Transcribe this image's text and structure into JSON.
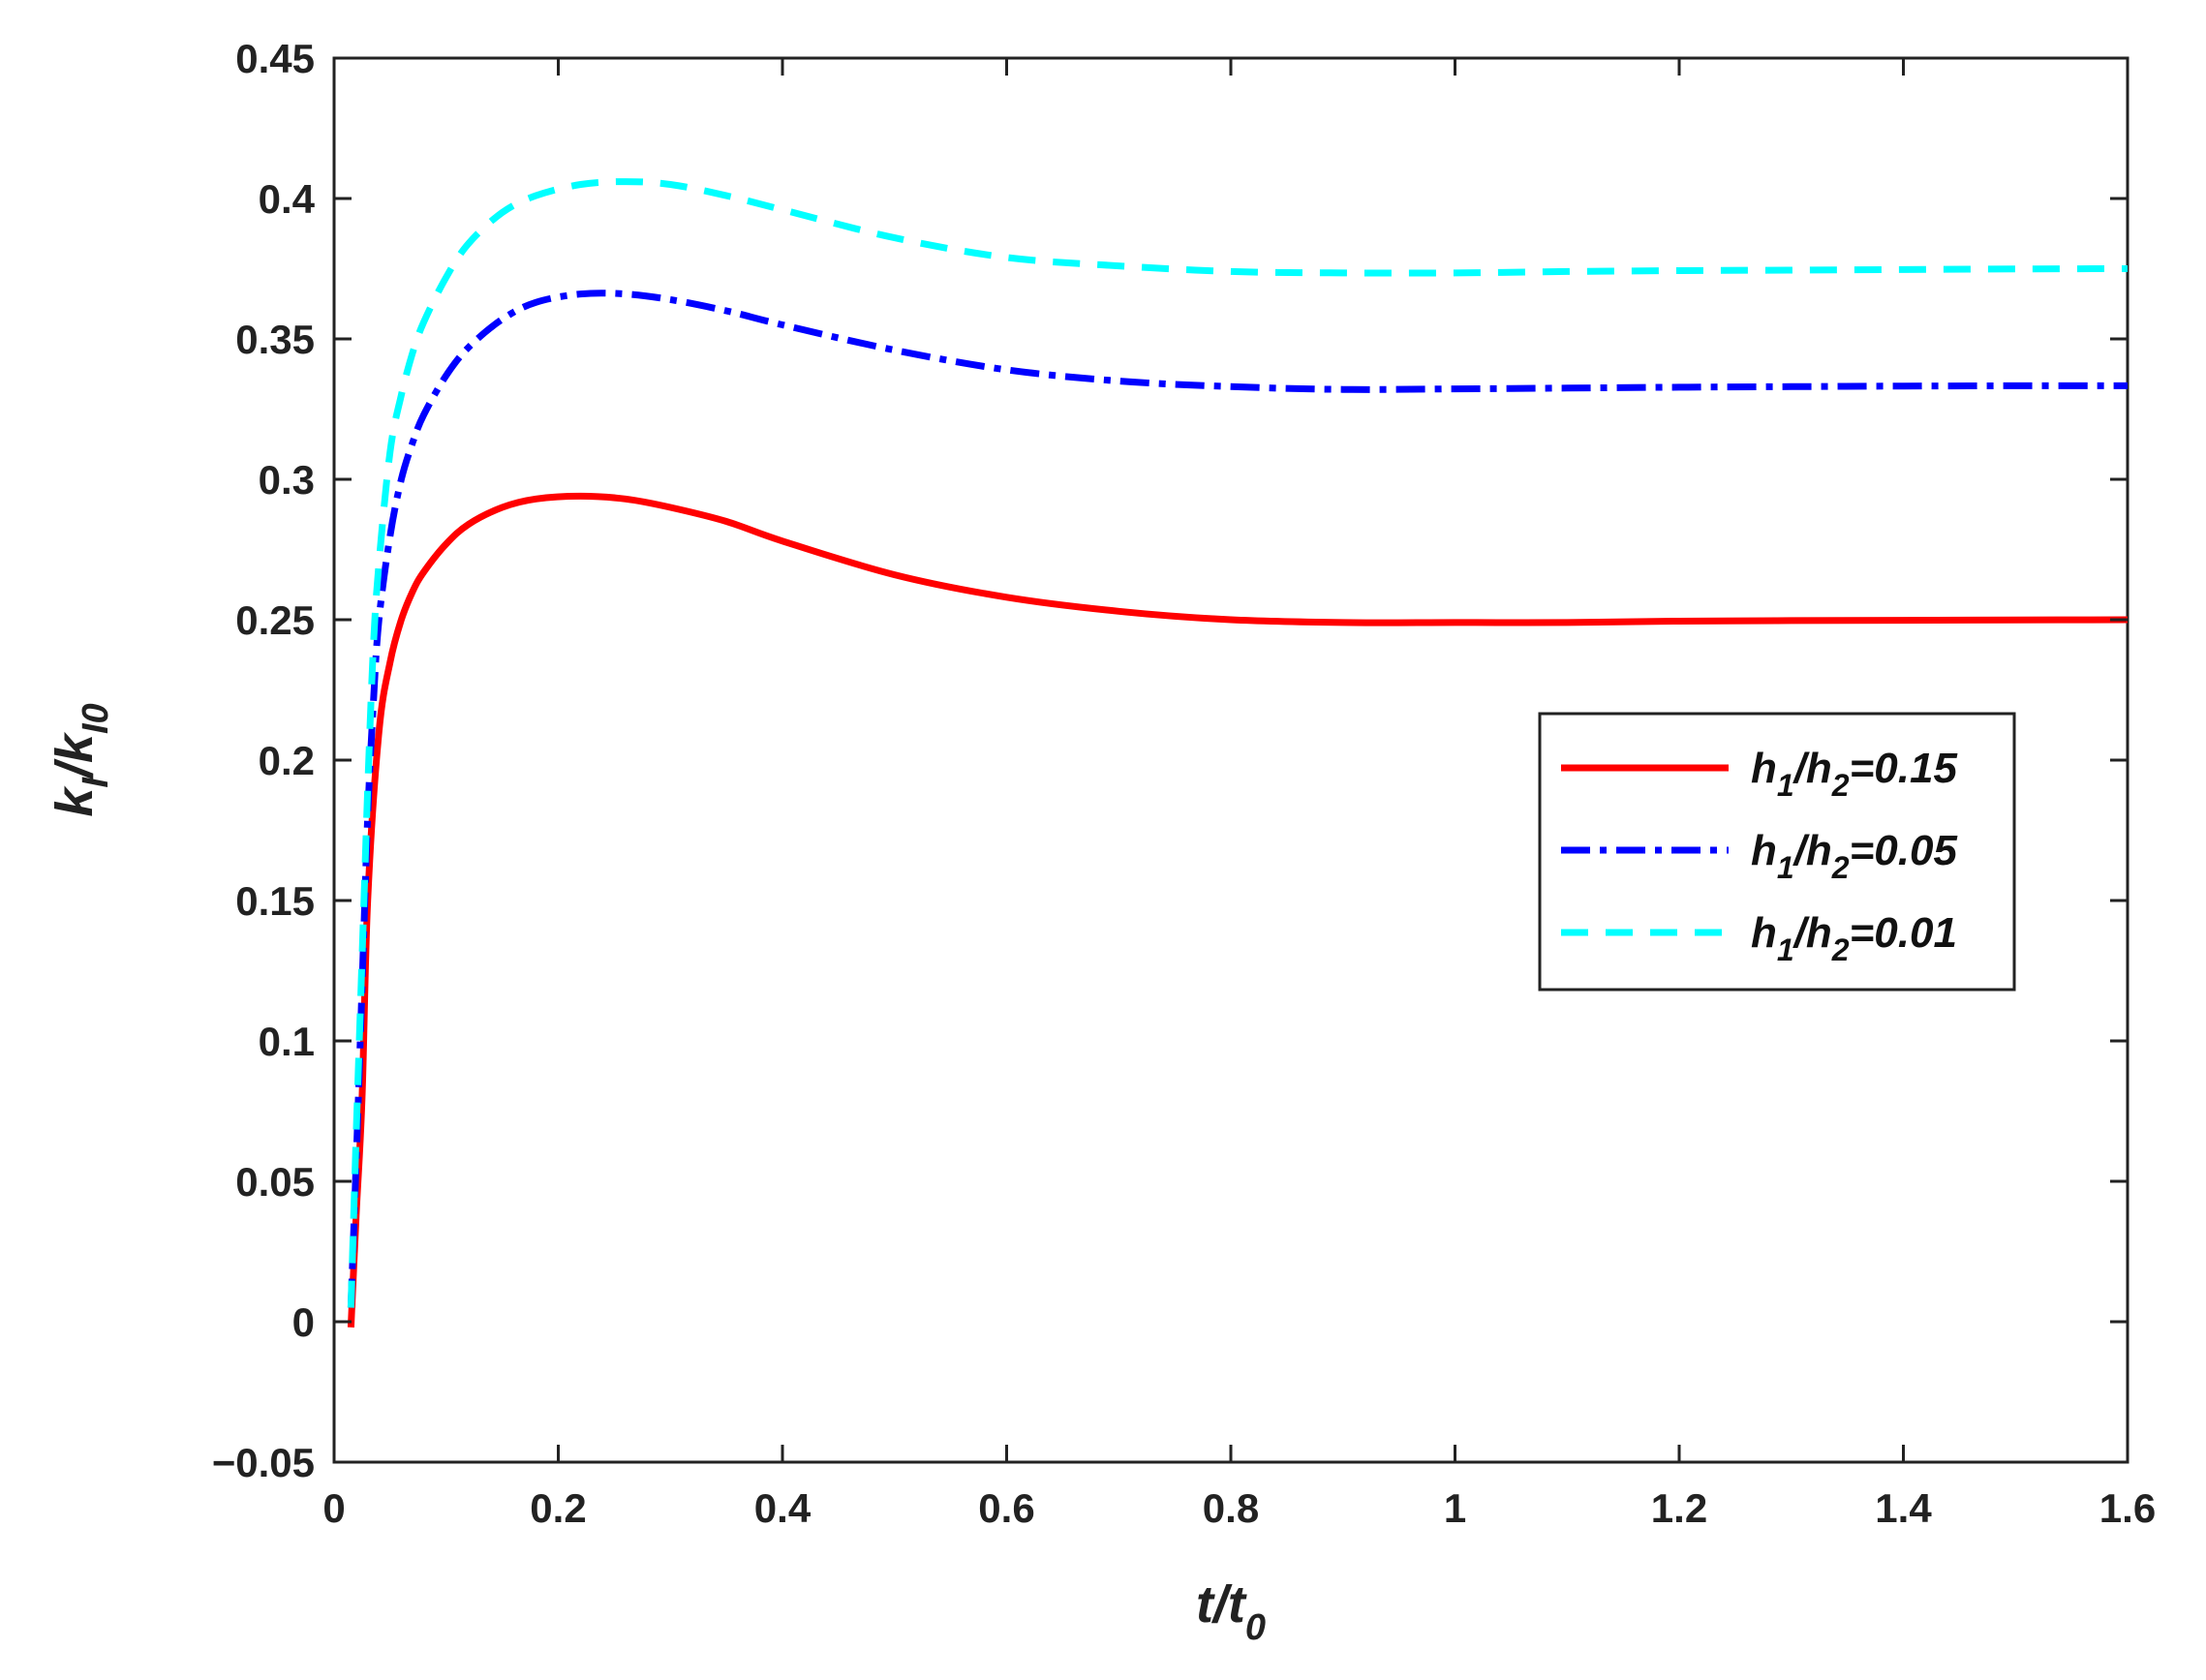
{
  "chart_data": {
    "type": "line",
    "xlabel": {
      "main": "t/t",
      "sub": "0"
    },
    "ylabel": {
      "main": "k",
      "sub1": "I",
      "mid": "/k",
      "sub2": "I0"
    },
    "xlim": [
      0,
      1.6
    ],
    "ylim": [
      -0.05,
      0.45
    ],
    "xticks": [
      0,
      0.2,
      0.4,
      0.6,
      0.8,
      1,
      1.2,
      1.4,
      1.6
    ],
    "xtick_labels": [
      "0",
      "0.2",
      "0.4",
      "0.6",
      "0.8",
      "1",
      "1.2",
      "1.4",
      "1.6"
    ],
    "yticks": [
      -0.05,
      0,
      0.05,
      0.1,
      0.15,
      0.2,
      0.25,
      0.3,
      0.35,
      0.4,
      0.45
    ],
    "ytick_labels": [
      "−0.05",
      "0",
      "0.05",
      "0.1",
      "0.15",
      "0.2",
      "0.25",
      "0.3",
      "0.35",
      "0.4",
      "0.45"
    ],
    "grid": false,
    "legend_position": "right-middle",
    "series": [
      {
        "legend": {
          "h1": "h",
          "s1": "1",
          "mid": "/h",
          "s2": "2",
          "value": "=0.15"
        },
        "color": "#ff0000",
        "style": "solid",
        "x": [
          0.015,
          0.02,
          0.025,
          0.03,
          0.04,
          0.05,
          0.06,
          0.07,
          0.08,
          0.1,
          0.12,
          0.15,
          0.18,
          0.22,
          0.26,
          0.3,
          0.35,
          0.4,
          0.5,
          0.6,
          0.7,
          0.8,
          0.9,
          1.0,
          1.1,
          1.2,
          1.3,
          1.4,
          1.5,
          1.6
        ],
        "y": [
          -0.002,
          0.04,
          0.08,
          0.15,
          0.21,
          0.235,
          0.25,
          0.26,
          0.267,
          0.277,
          0.284,
          0.29,
          0.293,
          0.294,
          0.293,
          0.29,
          0.285,
          0.278,
          0.266,
          0.258,
          0.253,
          0.25,
          0.249,
          0.249,
          0.249,
          0.2495,
          0.2497,
          0.2498,
          0.2499,
          0.25
        ]
      },
      {
        "legend": {
          "h1": "h",
          "s1": "1",
          "mid": "/h",
          "s2": "2",
          "value": "=0.05"
        },
        "color": "#0000ff",
        "style": "dashdot",
        "x": [
          0.015,
          0.02,
          0.025,
          0.03,
          0.035,
          0.04,
          0.05,
          0.06,
          0.07,
          0.08,
          0.1,
          0.12,
          0.15,
          0.18,
          0.22,
          0.26,
          0.3,
          0.35,
          0.4,
          0.5,
          0.6,
          0.7,
          0.8,
          0.9,
          1.0,
          1.1,
          1.2,
          1.3,
          1.4,
          1.5,
          1.6
        ],
        "y": [
          0.005,
          0.06,
          0.12,
          0.18,
          0.22,
          0.25,
          0.28,
          0.3,
          0.313,
          0.323,
          0.337,
          0.347,
          0.357,
          0.363,
          0.366,
          0.366,
          0.364,
          0.36,
          0.355,
          0.346,
          0.339,
          0.335,
          0.333,
          0.332,
          0.3322,
          0.3325,
          0.3328,
          0.333,
          0.3332,
          0.3333,
          0.3333
        ]
      },
      {
        "legend": {
          "h1": "h",
          "s1": "1",
          "mid": "/h",
          "s2": "2",
          "value": "=0.01"
        },
        "color": "#00ffff",
        "style": "dashed",
        "x": [
          0.015,
          0.02,
          0.025,
          0.03,
          0.035,
          0.04,
          0.05,
          0.06,
          0.07,
          0.08,
          0.1,
          0.12,
          0.15,
          0.18,
          0.22,
          0.26,
          0.3,
          0.35,
          0.4,
          0.5,
          0.6,
          0.7,
          0.8,
          0.9,
          1.0,
          1.1,
          1.2,
          1.3,
          1.4,
          1.5,
          1.6
        ],
        "y": [
          0.005,
          0.07,
          0.13,
          0.19,
          0.24,
          0.27,
          0.31,
          0.33,
          0.345,
          0.356,
          0.372,
          0.384,
          0.395,
          0.401,
          0.405,
          0.406,
          0.405,
          0.401,
          0.396,
          0.386,
          0.379,
          0.376,
          0.374,
          0.3735,
          0.3735,
          0.374,
          0.3743,
          0.3745,
          0.3747,
          0.3749,
          0.375
        ]
      }
    ]
  }
}
